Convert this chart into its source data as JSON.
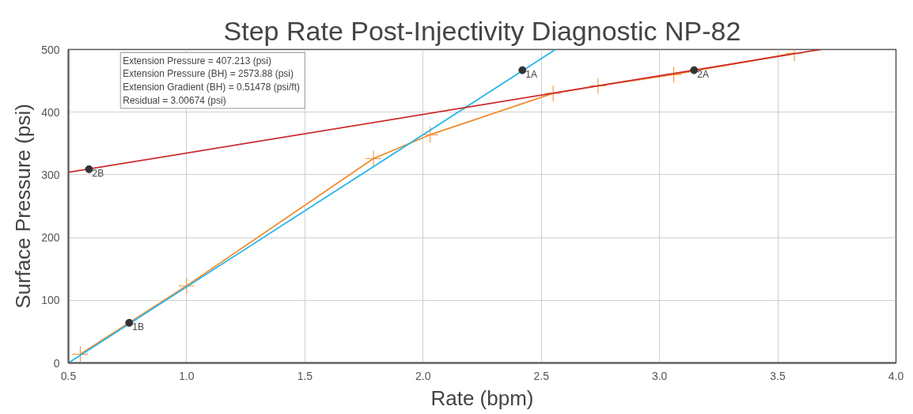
{
  "chart_data": {
    "type": "line",
    "title": "Step Rate Post-Injectivity Diagnostic NP-82",
    "xlabel": "Rate (bpm)",
    "ylabel": "Surface Pressure (psi)",
    "xlim": [
      0.5,
      4.0
    ],
    "xticks": [
      {
        "value": 0.5,
        "label": "0.5"
      },
      {
        "value": 1.0,
        "label": "1.0"
      },
      {
        "value": 1.5,
        "label": "1.5"
      },
      {
        "value": 2.0,
        "label": "2.0"
      },
      {
        "value": 2.5,
        "label": "2.5"
      },
      {
        "value": 3.0,
        "label": "3.0"
      },
      {
        "value": 3.5,
        "label": "3.5"
      },
      {
        "value": 4.0,
        "label": "4.0"
      }
    ],
    "ylim": [
      0,
      500
    ],
    "yticks": [
      0,
      100,
      200,
      300,
      400,
      500
    ],
    "grid": true,
    "series": [
      {
        "color": "#f08c30",
        "marker": "cross",
        "x": [
          0.55,
          1.0,
          1.79,
          2.03,
          2.55,
          2.74,
          3.06,
          3.57
        ],
        "values": [
          14,
          123,
          326,
          364,
          430,
          442,
          460,
          494
        ]
      },
      {
        "color": "#29b6e8",
        "marker": "none",
        "x": [
          0.5,
          2.56
        ],
        "values": [
          0,
          500
        ]
      },
      {
        "color": "#cc2b2b",
        "marker": "none",
        "x": [
          0.5,
          3.68
        ],
        "values": [
          304,
          500
        ]
      },
      {
        "type": "scatter",
        "color": "#333333",
        "marker": "circle",
        "x": [
          0.757,
          2.42,
          0.587,
          3.146
        ],
        "values": [
          64,
          467,
          309,
          467
        ]
      }
    ],
    "annotations": [
      "Extension Pressure = 407.213  (psi)",
      "Extension Pressure (BH) = 2573.88  (psi)",
      "Extension Gradient (BH) = 0.51478  (psi/ft)",
      "Residual = 3.00674  (psi)",
      {
        "text": "1B",
        "x": 0.757,
        "y": 64
      },
      {
        "text": "1A",
        "x": 2.42,
        "y": 467
      },
      {
        "text": "2B",
        "x": 0.587,
        "y": 309
      },
      {
        "text": "2A",
        "x": 3.146,
        "y": 467
      }
    ]
  }
}
